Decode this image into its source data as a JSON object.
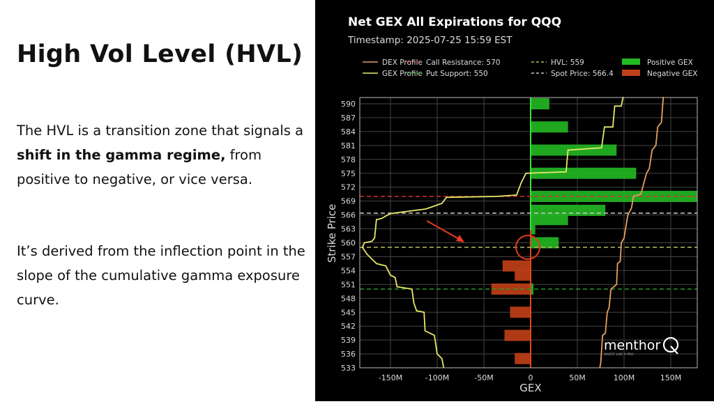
{
  "slide": {
    "title": "High Vol Level (HVL)",
    "paragraph1": {
      "pre": "The HVL is a transition zone that signals a ",
      "bold": "shift in the gamma regime,",
      "post": " from positive to negative, or vice versa."
    },
    "paragraph2": "It’s derived from the inflection point in the slope of the cumulative gamma exposure curve."
  },
  "chart_data": {
    "type": "bar",
    "orientation": "horizontal",
    "title": "Net GEX All Expirations for QQQ",
    "subtitle": "Timestamp: 2025-07-25 15:59 EST",
    "xlabel": "GEX",
    "ylabel": "Strike Price",
    "xlim": [
      -183,
      178
    ],
    "ylim": [
      533,
      591.5
    ],
    "x_unit": "M",
    "grid": true,
    "legend_placement": "top",
    "xticks": [
      {
        "value": -150,
        "label": "-150M"
      },
      {
        "value": -100,
        "label": "-100M"
      },
      {
        "value": -50,
        "label": "-50M"
      },
      {
        "value": 0,
        "label": "0"
      },
      {
        "value": 50,
        "label": "50M"
      },
      {
        "value": 100,
        "label": "100M"
      },
      {
        "value": 150,
        "label": "150M"
      }
    ],
    "yticks": [
      "590",
      "587",
      "584",
      "581",
      "578",
      "575",
      "572",
      "569",
      "566",
      "563",
      "560",
      "557",
      "554",
      "551",
      "548",
      "545",
      "542",
      "539",
      "536",
      "533"
    ],
    "legend": [
      {
        "label": "DEX Profile",
        "kind": "line",
        "color": "#e8a060"
      },
      {
        "label": "GEX Profile",
        "kind": "line",
        "color": "#e8e86a"
      },
      {
        "label": "Call Resistance: 570",
        "kind": "dash",
        "color": "#d83030"
      },
      {
        "label": "Put Support: 550",
        "kind": "dash",
        "color": "#2a9a2a"
      },
      {
        "label": "HVL: 559",
        "kind": "dash",
        "color": "#b8b860"
      },
      {
        "label": "Spot Price: 566.4",
        "kind": "dash",
        "color": "#cccccc"
      },
      {
        "label": "Positive GEX",
        "kind": "patch",
        "color": "#22bb22"
      },
      {
        "label": "Negative GEX",
        "kind": "patch",
        "color": "#c0401a"
      }
    ],
    "levels": [
      {
        "name": "Call Resistance",
        "value": 570,
        "color": "#d83030"
      },
      {
        "name": "Put Support",
        "value": 550,
        "color": "#2a9a2a"
      },
      {
        "name": "HVL",
        "value": 559,
        "color": "#b8b860"
      },
      {
        "name": "Spot Price",
        "value": 566.4,
        "color": "#cccccc"
      }
    ],
    "bars": [
      {
        "strike": 590,
        "gex": 20
      },
      {
        "strike": 585,
        "gex": 40
      },
      {
        "strike": 580,
        "gex": 92
      },
      {
        "strike": 575,
        "gex": 113
      },
      {
        "strike": 570,
        "gex": 178
      },
      {
        "strike": 567,
        "gex": 80
      },
      {
        "strike": 565,
        "gex": 40
      },
      {
        "strike": 563,
        "gex": 5
      },
      {
        "strike": 560,
        "gex": 30
      },
      {
        "strike": 555,
        "gex": -30
      },
      {
        "strike": 553,
        "gex": -17
      },
      {
        "strike": 550,
        "gex": -42
      },
      {
        "strike": 550,
        "gex": 3
      },
      {
        "strike": 545,
        "gex": -22
      },
      {
        "strike": 540,
        "gex": -28
      },
      {
        "strike": 535,
        "gex": -17
      }
    ],
    "series": [
      {
        "name": "GEX Profile",
        "color": "#e8e86a",
        "points": [
          [
            99,
            591.5
          ],
          [
            97,
            589.5
          ],
          [
            90,
            589.5
          ],
          [
            88,
            585
          ],
          [
            79,
            585
          ],
          [
            76,
            580.5
          ],
          [
            40,
            580
          ],
          [
            38,
            575.3
          ],
          [
            -5,
            575
          ],
          [
            -10,
            573
          ],
          [
            -15,
            570.3
          ],
          [
            -37,
            570
          ],
          [
            -90,
            569.8
          ],
          [
            -95,
            568.5
          ],
          [
            -112,
            567.3
          ],
          [
            -150,
            566.3
          ],
          [
            -160,
            565.2
          ],
          [
            -165,
            565
          ],
          [
            -167,
            561
          ],
          [
            -170,
            560.3
          ],
          [
            -178,
            560
          ],
          [
            -180,
            559
          ],
          [
            -175,
            557.5
          ],
          [
            -165,
            555.5
          ],
          [
            -155,
            555
          ],
          [
            -150,
            553
          ],
          [
            -145,
            552.5
          ],
          [
            -143,
            550.5
          ],
          [
            -127,
            550
          ],
          [
            -125,
            547
          ],
          [
            -122,
            545.3
          ],
          [
            -114,
            545
          ],
          [
            -113,
            541
          ],
          [
            -103,
            540
          ],
          [
            -100,
            536
          ],
          [
            -95,
            535
          ],
          [
            -93,
            533
          ]
        ]
      },
      {
        "name": "DEX Profile",
        "color": "#e8a060",
        "points": [
          [
            142,
            591.5
          ],
          [
            140,
            586
          ],
          [
            136,
            585
          ],
          [
            134,
            581
          ],
          [
            130,
            580
          ],
          [
            127,
            576
          ],
          [
            124,
            575
          ],
          [
            118,
            570.5
          ],
          [
            110,
            570
          ],
          [
            108,
            567.5
          ],
          [
            104,
            566
          ],
          [
            100,
            561
          ],
          [
            97,
            560
          ],
          [
            96,
            556
          ],
          [
            93,
            555.5
          ],
          [
            92,
            551
          ],
          [
            86,
            550
          ],
          [
            84,
            546
          ],
          [
            82,
            545
          ],
          [
            80,
            540.5
          ],
          [
            77,
            540
          ],
          [
            75,
            534
          ],
          [
            74,
            533
          ]
        ]
      }
    ],
    "watermark": {
      "text": "menthor",
      "tagline": "INVEST LIKE A PRO"
    }
  }
}
